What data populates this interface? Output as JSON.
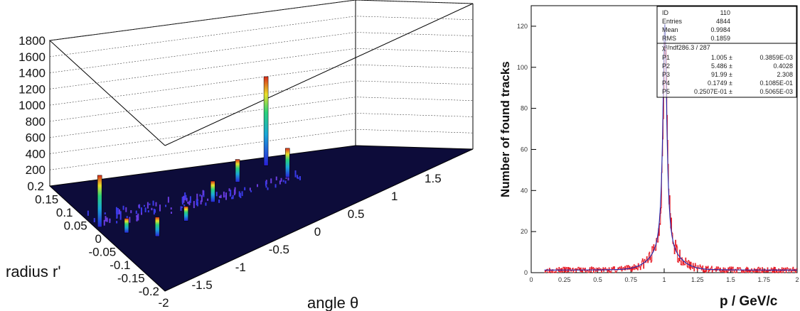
{
  "chart_data": [
    {
      "type": "lego3d",
      "xlabel": "angle θ",
      "ylabel": "radius r'",
      "x_ticks": [
        "-2",
        "-1.5",
        "-1",
        "-0.5",
        "0",
        "0.5",
        "1",
        "1.5"
      ],
      "y_ticks": [
        "0.2",
        "0.15",
        "0.1",
        "0.05",
        "0",
        "-0.05",
        "-0.1",
        "-0.15",
        "-0.2"
      ],
      "z_ticks": [
        "200",
        "400",
        "600",
        "800",
        "1000",
        "1200",
        "1400",
        "1600",
        "1800"
      ],
      "xlim": [
        -2,
        2
      ],
      "ylim": [
        -0.2,
        0.2
      ],
      "zlim": [
        0,
        1800
      ],
      "peaks": [
        {
          "x": -1.95,
          "y": 0.04,
          "z": 640
        },
        {
          "x": -1.75,
          "y": 0.0,
          "z": 180
        },
        {
          "x": -1.5,
          "y": -0.04,
          "z": 240
        },
        {
          "x": -1.05,
          "y": -0.02,
          "z": 180
        },
        {
          "x": -0.55,
          "y": 0.02,
          "z": 260
        },
        {
          "x": 0.0,
          "y": 0.08,
          "z": 280
        },
        {
          "x": 0.5,
          "y": 0.04,
          "z": 360
        },
        {
          "x": 0.6,
          "y": 0.14,
          "z": 1100
        }
      ],
      "colors": {
        "floor": "#0d0c3a",
        "line": "#000000"
      }
    },
    {
      "type": "histogram",
      "xlabel": "p / GeV/c",
      "ylabel": "Number of found tracks",
      "xlim": [
        0,
        2
      ],
      "ylim": [
        0,
        130
      ],
      "x_ticks": [
        "0",
        "0.25",
        "0.5",
        "0.75",
        "1",
        "1.25",
        "1.5",
        "1.75",
        "2"
      ],
      "y_ticks": [
        "0",
        "20",
        "40",
        "60",
        "80",
        "100",
        "120"
      ],
      "fit_peak_x": 1.005,
      "fit_peak_y": 114,
      "stats": [
        [
          "ID",
          "110"
        ],
        [
          "Entries",
          "4844"
        ],
        [
          "Mean",
          "0.9984"
        ],
        [
          "RMS",
          "0.1859"
        ]
      ],
      "fit_header": "χ²/ndf286.3  /  287",
      "fit_params": [
        [
          "P1",
          "1.005 ±",
          "0.3859E-03"
        ],
        [
          "P2",
          "5.486 ±",
          "0.4028"
        ],
        [
          "P3",
          "91.99 ±",
          "2.308"
        ],
        [
          "P4",
          "0.1749 ±",
          "0.1085E-01"
        ],
        [
          "P5",
          "0.2507E-01 ±",
          "0.5065E-03"
        ]
      ],
      "colors": {
        "histogram": "#e8202a",
        "fit": "#2a2aa8",
        "axis": "#000000"
      }
    }
  ]
}
